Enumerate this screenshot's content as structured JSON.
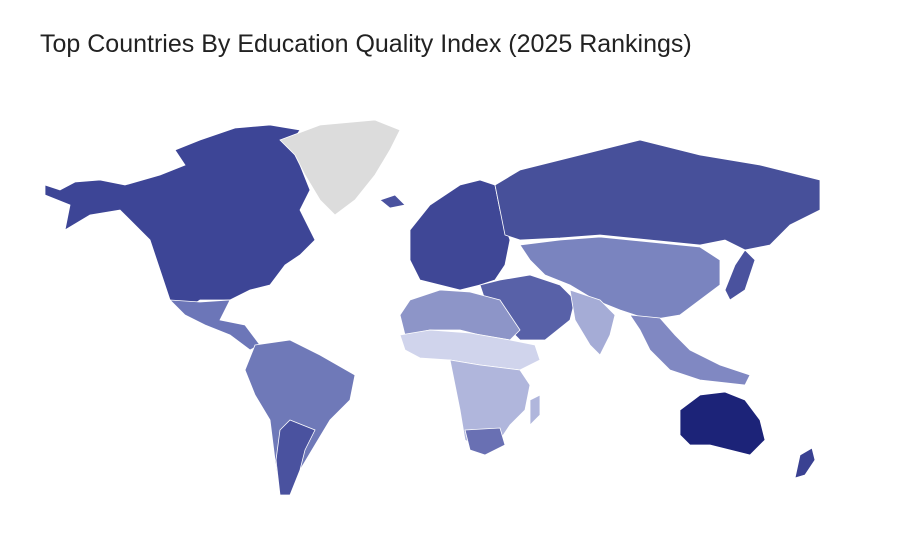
{
  "title": "Top Countries By Education Quality Index (2025 Rankings)",
  "map": {
    "fills": [
      "#3d4596",
      "#dcdcdc",
      "#4a529f",
      "#6c76b8",
      "#6f79b8",
      "#4a529f",
      "#3f4796",
      "#47509a",
      "#7a84bf",
      "#5861a8",
      "#a5acd6",
      "#8088c2",
      "#4a529e",
      "#8d95c8",
      "#d0d4ec",
      "#b0b6dc",
      "#6970b3",
      "#b0b6dc",
      "#1c2378",
      "#3a4192"
    ]
  }
}
